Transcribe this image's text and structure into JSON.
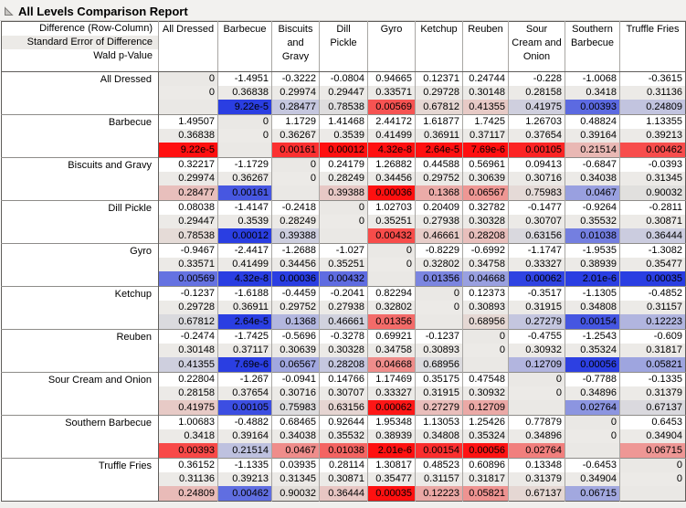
{
  "window": {
    "title": "All Levels Comparison Report"
  },
  "colors": {
    "significant_positive": "#ff1010",
    "significant_negative": "#2a3ee2",
    "p_cell_base": "#e4e2de",
    "se_row_bg": "#eceae7",
    "diagonal_bg": "#eae8e5"
  },
  "table": {
    "corner_lines": [
      "Difference (Row-Column)",
      "Standard Error of Difference",
      "Wald p-Value"
    ],
    "levels": [
      "All Dressed",
      "Barbecue",
      "Biscuits and Gravy",
      "Dill Pickle",
      "Gyro",
      "Ketchup",
      "Reuben",
      "Sour Cream and Onion",
      "Southern Barbecue",
      "Truffle Fries"
    ],
    "rows": [
      {
        "label": "All Dressed",
        "diff": [
          "0",
          "-1.4951",
          "-0.3222",
          "-0.0804",
          "0.94665",
          "0.12371",
          "0.24744",
          "-0.228",
          "-1.0068",
          "-0.3615"
        ],
        "se": [
          "0",
          "0.36838",
          "0.29974",
          "0.29447",
          "0.33571",
          "0.29728",
          "0.30148",
          "0.28158",
          "0.3418",
          "0.31136"
        ],
        "p": [
          "",
          "9.22e-5",
          "0.28477",
          "0.78538",
          "0.00569",
          "0.67812",
          "0.41355",
          "0.41975",
          "0.00393",
          "0.24809"
        ]
      },
      {
        "label": "Barbecue",
        "diff": [
          "1.49507",
          "0",
          "1.1729",
          "1.41468",
          "2.44172",
          "1.61877",
          "1.7425",
          "1.26703",
          "0.48824",
          "1.13355"
        ],
        "se": [
          "0.36838",
          "0",
          "0.36267",
          "0.3539",
          "0.41499",
          "0.36911",
          "0.37117",
          "0.37654",
          "0.39164",
          "0.39213"
        ],
        "p": [
          "9.22e-5",
          "",
          "0.00161",
          "0.00012",
          "4.32e-8",
          "2.64e-5",
          "7.69e-6",
          "0.00105",
          "0.21514",
          "0.00462"
        ]
      },
      {
        "label": "Biscuits and Gravy",
        "diff": [
          "0.32217",
          "-1.1729",
          "0",
          "0.24179",
          "1.26882",
          "0.44588",
          "0.56961",
          "0.09413",
          "-0.6847",
          "-0.0393"
        ],
        "se": [
          "0.29974",
          "0.36267",
          "0",
          "0.28249",
          "0.34456",
          "0.29752",
          "0.30639",
          "0.30716",
          "0.34038",
          "0.31345"
        ],
        "p": [
          "0.28477",
          "0.00161",
          "",
          "0.39388",
          "0.00036",
          "0.1368",
          "0.06567",
          "0.75983",
          "0.0467",
          "0.90032"
        ]
      },
      {
        "label": "Dill Pickle",
        "diff": [
          "0.08038",
          "-1.4147",
          "-0.2418",
          "0",
          "1.02703",
          "0.20409",
          "0.32782",
          "-0.1477",
          "-0.9264",
          "-0.2811"
        ],
        "se": [
          "0.29447",
          "0.3539",
          "0.28249",
          "0",
          "0.35251",
          "0.27938",
          "0.30328",
          "0.30707",
          "0.35532",
          "0.30871"
        ],
        "p": [
          "0.78538",
          "0.00012",
          "0.39388",
          "",
          "0.00432",
          "0.46661",
          "0.28208",
          "0.63156",
          "0.01038",
          "0.36444"
        ]
      },
      {
        "label": "Gyro",
        "diff": [
          "-0.9467",
          "-2.4417",
          "-1.2688",
          "-1.027",
          "0",
          "-0.8229",
          "-0.6992",
          "-1.1747",
          "-1.9535",
          "-1.3082"
        ],
        "se": [
          "0.33571",
          "0.41499",
          "0.34456",
          "0.35251",
          "0",
          "0.32802",
          "0.34758",
          "0.33327",
          "0.38939",
          "0.35477"
        ],
        "p": [
          "0.00569",
          "4.32e-8",
          "0.00036",
          "0.00432",
          "",
          "0.01356",
          "0.04668",
          "0.00062",
          "2.01e-6",
          "0.00035"
        ]
      },
      {
        "label": "Ketchup",
        "diff": [
          "-0.1237",
          "-1.6188",
          "-0.4459",
          "-0.2041",
          "0.82294",
          "0",
          "0.12373",
          "-0.3517",
          "-1.1305",
          "-0.4852"
        ],
        "se": [
          "0.29728",
          "0.36911",
          "0.29752",
          "0.27938",
          "0.32802",
          "0",
          "0.30893",
          "0.31915",
          "0.34808",
          "0.31157"
        ],
        "p": [
          "0.67812",
          "2.64e-5",
          "0.1368",
          "0.46661",
          "0.01356",
          "",
          "0.68956",
          "0.27279",
          "0.00154",
          "0.12223"
        ]
      },
      {
        "label": "Reuben",
        "diff": [
          "-0.2474",
          "-1.7425",
          "-0.5696",
          "-0.3278",
          "0.69921",
          "-0.1237",
          "0",
          "-0.4755",
          "-1.2543",
          "-0.609"
        ],
        "se": [
          "0.30148",
          "0.37117",
          "0.30639",
          "0.30328",
          "0.34758",
          "0.30893",
          "0",
          "0.30932",
          "0.35324",
          "0.31817"
        ],
        "p": [
          "0.41355",
          "7.69e-6",
          "0.06567",
          "0.28208",
          "0.04668",
          "0.68956",
          "",
          "0.12709",
          "0.00056",
          "0.05821"
        ]
      },
      {
        "label": "Sour Cream and Onion",
        "diff": [
          "0.22804",
          "-1.267",
          "-0.0941",
          "0.14766",
          "1.17469",
          "0.35175",
          "0.47548",
          "0",
          "-0.7788",
          "-0.1335"
        ],
        "se": [
          "0.28158",
          "0.37654",
          "0.30716",
          "0.30707",
          "0.33327",
          "0.31915",
          "0.30932",
          "0",
          "0.34896",
          "0.31379"
        ],
        "p": [
          "0.41975",
          "0.00105",
          "0.75983",
          "0.63156",
          "0.00062",
          "0.27279",
          "0.12709",
          "",
          "0.02764",
          "0.67137"
        ]
      },
      {
        "label": "Southern Barbecue",
        "diff": [
          "1.00683",
          "-0.4882",
          "0.68465",
          "0.92644",
          "1.95348",
          "1.13053",
          "1.25426",
          "0.77879",
          "0",
          "0.6453"
        ],
        "se": [
          "0.3418",
          "0.39164",
          "0.34038",
          "0.35532",
          "0.38939",
          "0.34808",
          "0.35324",
          "0.34896",
          "0",
          "0.34904"
        ],
        "p": [
          "0.00393",
          "0.21514",
          "0.0467",
          "0.01038",
          "2.01e-6",
          "0.00154",
          "0.00056",
          "0.02764",
          "",
          "0.06715"
        ]
      },
      {
        "label": "Truffle Fries",
        "diff": [
          "0.36152",
          "-1.1335",
          "0.03935",
          "0.28114",
          "1.30817",
          "0.48523",
          "0.60896",
          "0.13348",
          "-0.6453",
          "0"
        ],
        "se": [
          "0.31136",
          "0.39213",
          "0.31345",
          "0.30871",
          "0.35477",
          "0.31157",
          "0.31817",
          "0.31379",
          "0.34904",
          "0"
        ],
        "p": [
          "0.24809",
          "0.00462",
          "0.90032",
          "0.36444",
          "0.00035",
          "0.12223",
          "0.05821",
          "0.67137",
          "0.06715",
          ""
        ]
      }
    ]
  }
}
